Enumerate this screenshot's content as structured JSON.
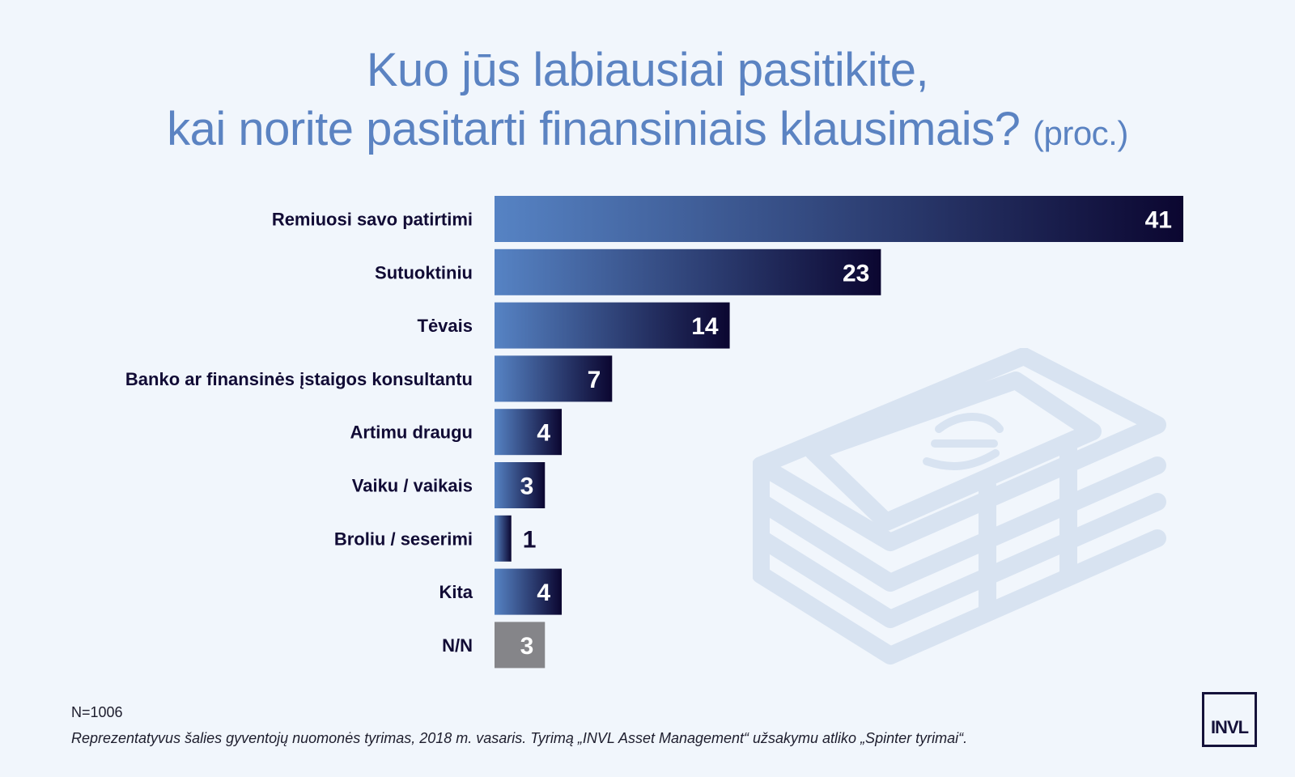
{
  "title": {
    "line1": "Kuo jūs labiausiai pasitikite,",
    "line2": "kai norite pasitarti finansiniais klausimais?",
    "unit": "(proc.)"
  },
  "chart_data": {
    "type": "bar",
    "orientation": "horizontal",
    "categories": [
      "Remiuosi savo patirtimi",
      "Sutuoktiniu",
      "Tėvais",
      "Banko ar finansinės įstaigos konsultantu",
      "Artimu draugu",
      "Vaiku / vaikais",
      "Broliu / seserimi",
      "Kita",
      "N/N"
    ],
    "values": [
      41,
      23,
      14,
      7,
      4,
      3,
      1,
      4,
      3
    ],
    "title": "Kuo jūs labiausiai pasitikite, kai norite pasitarti finansiniais klausimais? (proc.)",
    "xlabel": "",
    "ylabel": "",
    "xlim": [
      0,
      41
    ],
    "grid": false,
    "legend": "none",
    "colors": {
      "gradient_start": "#5683c4",
      "gradient_end": "#0b0630",
      "neutral_bar": "#858589"
    }
  },
  "watermark": {
    "icon": "money-stack-icon",
    "color": "#d8e3f1"
  },
  "footer": {
    "sample_size": "N=1006",
    "note": "Reprezentatyvus šalies gyventojų nuomonės tyrimas, 2018 m. vasaris. Tyrimą „INVL Asset Management“ užsakymu atliko „Spinter tyrimai“."
  },
  "logo": {
    "text": "INVL",
    "color": "#15123a"
  }
}
